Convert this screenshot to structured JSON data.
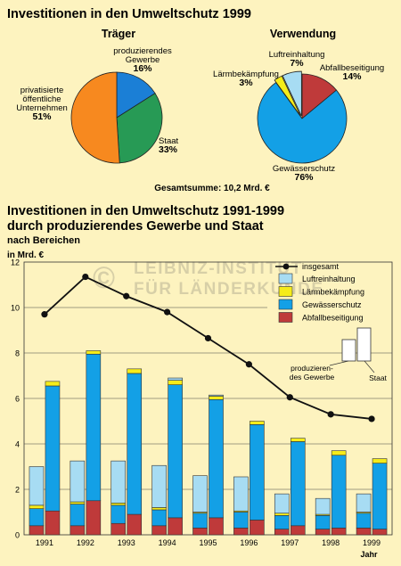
{
  "colors": {
    "background": "#fdf3bf",
    "blue": "#1b7fd6",
    "green": "#279a55",
    "orange": "#f7891f",
    "gewaesser": "#13a0e6",
    "luft": "#a7dcf3",
    "laerm": "#f5ec1a",
    "abfall": "#bf3a3a",
    "line": "#111111"
  },
  "chart_data": [
    {
      "type": "pie",
      "title": "Investitionen in den Umweltschutz 1999",
      "subtitle": "Träger",
      "slices": [
        {
          "label_lines": [
            "produzierendes",
            "Gewerbe"
          ],
          "value": 16,
          "value_label": "16%",
          "color": "#1b7fd6"
        },
        {
          "label_lines": [
            "Staat"
          ],
          "value": 33,
          "value_label": "33%",
          "color": "#279a55"
        },
        {
          "label_lines": [
            "privatisierte",
            "öffentliche",
            "Unternehmen"
          ],
          "value": 51,
          "value_label": "51%",
          "color": "#f7891f"
        }
      ]
    },
    {
      "type": "pie",
      "subtitle": "Verwendung",
      "total_label": "Gesamtsumme: 10,2 Mrd. €",
      "slices": [
        {
          "label_lines": [
            "Abfallbeseitigung"
          ],
          "value": 14,
          "value_label": "14%",
          "color": "#bf3a3a"
        },
        {
          "label_lines": [
            "Gewässerschutz"
          ],
          "value": 76,
          "value_label": "76%",
          "color": "#13a0e6"
        },
        {
          "label_lines": [
            "Lärmbekämpfung"
          ],
          "value": 3,
          "value_label": "3%",
          "color": "#f5ec1a"
        },
        {
          "label_lines": [
            "Luftreinhaltung"
          ],
          "value": 7,
          "value_label": "7%",
          "color": "#a7dcf3"
        }
      ]
    },
    {
      "type": "bar",
      "title_lines": [
        "Investitionen in den Umweltschutz 1991-1999",
        "durch produzierendes Gewerbe und Staat"
      ],
      "subtitle": "nach Bereichen",
      "ylabel": "in Mrd. €",
      "xlabel": "Jahr",
      "ylim": [
        0,
        12
      ],
      "yticks": [
        0,
        2,
        4,
        6,
        8,
        10,
        12
      ],
      "categories": [
        "1991",
        "1992",
        "1993",
        "1994",
        "1995",
        "1996",
        "1997",
        "1998",
        "1999"
      ],
      "groups": [
        {
          "name": "produzierendes Gewerbe",
          "stacks": {
            "Abfallbeseitigung": [
              0.4,
              0.4,
              0.5,
              0.4,
              0.3,
              0.3,
              0.25,
              0.25,
              0.3
            ],
            "Gewässerschutz": [
              0.75,
              0.95,
              0.8,
              0.7,
              0.65,
              0.7,
              0.6,
              0.6,
              0.65
            ],
            "Lärmbekämpfung": [
              0.15,
              0.1,
              0.1,
              0.1,
              0.05,
              0.05,
              0.1,
              0.05,
              0.05
            ],
            "Luftreinhaltung": [
              1.7,
              1.8,
              1.85,
              1.85,
              1.6,
              1.5,
              0.85,
              0.7,
              0.8
            ]
          },
          "totals": [
            3.0,
            3.25,
            3.25,
            3.05,
            2.6,
            2.55,
            1.8,
            1.6,
            1.8
          ]
        },
        {
          "name": "Staat",
          "stacks": {
            "Abfallbeseitigung": [
              1.05,
              1.5,
              0.9,
              0.75,
              0.75,
              0.65,
              0.4,
              0.3,
              0.25
            ],
            "Gewässerschutz": [
              5.5,
              6.45,
              6.2,
              5.85,
              5.2,
              4.2,
              3.7,
              3.2,
              2.9
            ],
            "Lärmbekämpfung": [
              0.2,
              0.15,
              0.2,
              0.2,
              0.15,
              0.15,
              0.15,
              0.2,
              0.2
            ],
            "Luftreinhaltung": [
              0.0,
              0.0,
              0.0,
              0.1,
              0.05,
              0.0,
              0.0,
              0.0,
              0.0
            ]
          },
          "totals": [
            6.75,
            8.1,
            7.3,
            6.9,
            6.15,
            5.0,
            4.25,
            3.7,
            3.35
          ]
        }
      ],
      "series": [
        {
          "name": "insgesamt",
          "type": "line",
          "values": [
            9.7,
            11.35,
            10.5,
            9.8,
            8.65,
            7.5,
            6.05,
            5.3,
            5.1
          ]
        },
        {
          "name": "Luftreinhaltung",
          "color": "#a7dcf3"
        },
        {
          "name": "Lärmbekämpfung",
          "color": "#f5ec1a"
        },
        {
          "name": "Gewässerschutz",
          "color": "#13a0e6"
        },
        {
          "name": "Abfallbeseitigung",
          "color": "#bf3a3a"
        }
      ],
      "legend_placement": "top-right",
      "mini_legend": {
        "left_lines": [
          "produzieren-",
          "des Gewerbe"
        ],
        "right_lines": [
          "Staat"
        ]
      },
      "grid": true
    }
  ],
  "watermark": {
    "line1": "LEIBNIZ-INSTITUT",
    "line2": "FÜR LÄNDERKUNDE",
    "symbol": "©"
  }
}
